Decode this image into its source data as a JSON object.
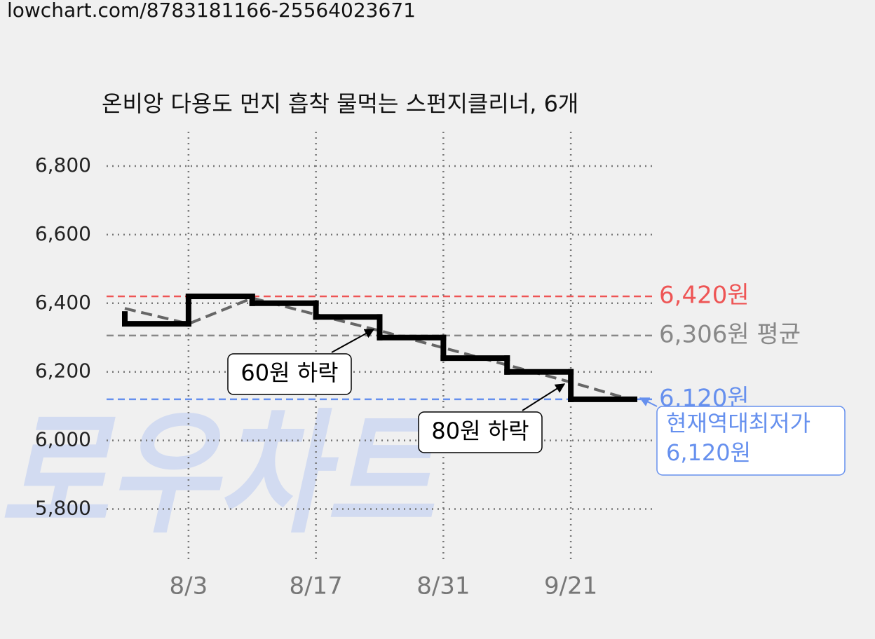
{
  "url": "lowchart.com/8783181166-25564023671",
  "chart_data": {
    "type": "step",
    "title": "온비앙 다용도 먼지 흡착 물먹는 스펀지클리너, 6개",
    "watermark": "로우차트",
    "categories": [
      null,
      "8/3",
      null,
      "8/17",
      null,
      "8/31",
      null,
      "9/21",
      null
    ],
    "series": [
      {
        "color": "#000000",
        "values": [
          6340,
          6420,
          6400,
          6360,
          6300,
          6240,
          6200,
          6120,
          6120
        ]
      },
      {
        "color": "#666666",
        "dashed": true,
        "values": [
          6385,
          6340,
          6415,
          6367,
          6320,
          6270,
          6220,
          6170,
          6116
        ]
      }
    ],
    "ylim": [
      5650,
      6900
    ],
    "yticks": [
      {
        "value": 5800,
        "label": "5,800"
      },
      {
        "value": 6000,
        "label": "6,000"
      },
      {
        "value": 6200,
        "label": "6,200"
      },
      {
        "value": 6400,
        "label": "6,400"
      },
      {
        "value": 6600,
        "label": "6,600"
      },
      {
        "value": 6800,
        "label": "6,800"
      }
    ],
    "grid": true,
    "reference_lines": [
      {
        "value": 6420,
        "label": "6,420원",
        "color": "#ee5555"
      },
      {
        "value": 6306,
        "label": "6,306원 평균",
        "color": "#888888"
      },
      {
        "value": 6120,
        "label": "6,120원",
        "color": "#6690ee"
      }
    ],
    "annotations": [
      {
        "text": "60원 하락"
      },
      {
        "text": "80원 하락"
      },
      {
        "text": [
          "현재역대최저가",
          "6,120원"
        ]
      }
    ]
  }
}
